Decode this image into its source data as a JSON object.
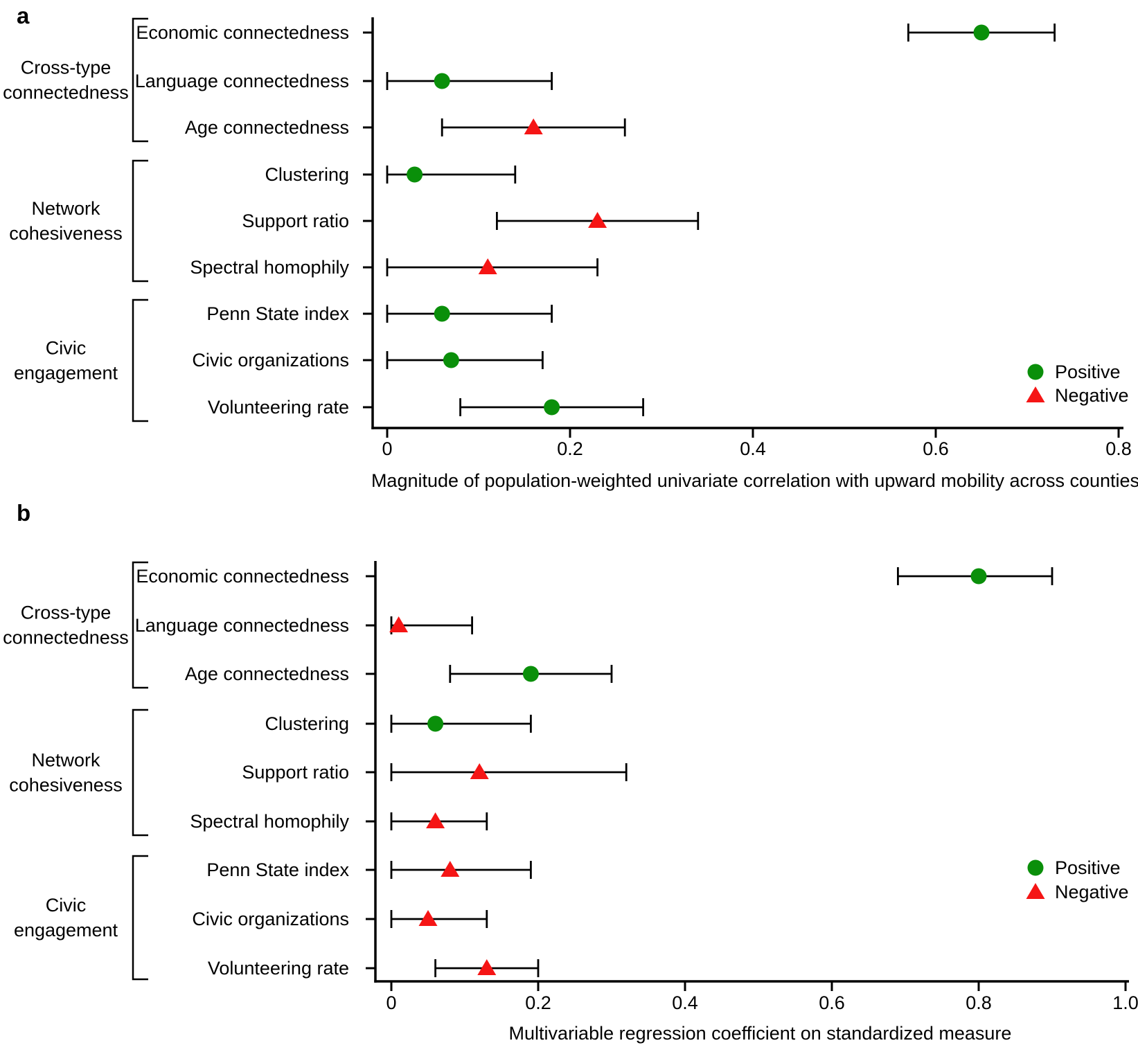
{
  "figure": {
    "background": "#ffffff",
    "text_color": "#000000",
    "positive_color": "#0a8f0a",
    "negative_color": "#f51515",
    "axis_color": "#000000"
  },
  "panels": [
    {
      "letter": "a"
    },
    {
      "letter": "b"
    }
  ],
  "chart_data": [
    {
      "panel": "a",
      "type": "scatter",
      "subtype": "dot-and-whisker-forest-plot",
      "xlabel": "Magnitude of population-weighted univariate correlation with upward mobility across counties",
      "xlim": [
        0,
        0.8
      ],
      "grid": false,
      "legend_position": "right-middle",
      "xticks": [
        {
          "value": 0,
          "label": "0"
        },
        {
          "value": 0.2,
          "label": "0.2"
        },
        {
          "value": 0.4,
          "label": "0.4"
        },
        {
          "value": 0.6,
          "label": "0.6"
        },
        {
          "value": 0.8,
          "label": "0.8"
        }
      ],
      "legend_entries": [
        {
          "label": "Positive",
          "marker": "circle",
          "sign": "positive"
        },
        {
          "label": "Negative",
          "marker": "triangle",
          "sign": "negative"
        }
      ],
      "groups": [
        {
          "label": "Cross-type connectedness",
          "label_lines": [
            "Cross-type",
            "connectedness"
          ],
          "first_row": 0,
          "last_row": 2
        },
        {
          "label": "Network cohesiveness",
          "label_lines": [
            "Network",
            "cohesiveness"
          ],
          "first_row": 3,
          "last_row": 5
        },
        {
          "label": "Civic engagement",
          "label_lines": [
            "Civic",
            "engagement"
          ],
          "first_row": 6,
          "last_row": 8
        }
      ],
      "rows": [
        {
          "label": "Economic connectedness",
          "sign": "positive",
          "value": 0.65,
          "ci": [
            0.57,
            0.73
          ]
        },
        {
          "label": "Language connectedness",
          "sign": "positive",
          "value": 0.06,
          "ci": [
            0.0,
            0.18
          ]
        },
        {
          "label": "Age connectedness",
          "sign": "negative",
          "value": 0.16,
          "ci": [
            0.06,
            0.26
          ]
        },
        {
          "label": "Clustering",
          "sign": "positive",
          "value": 0.03,
          "ci": [
            0.0,
            0.14
          ]
        },
        {
          "label": "Support ratio",
          "sign": "negative",
          "value": 0.23,
          "ci": [
            0.12,
            0.34
          ]
        },
        {
          "label": "Spectral homophily",
          "sign": "negative",
          "value": 0.11,
          "ci": [
            0.0,
            0.23
          ]
        },
        {
          "label": "Penn State index",
          "sign": "positive",
          "value": 0.06,
          "ci": [
            0.0,
            0.18
          ]
        },
        {
          "label": "Civic organizations",
          "sign": "positive",
          "value": 0.07,
          "ci": [
            0.0,
            0.17
          ]
        },
        {
          "label": "Volunteering rate",
          "sign": "positive",
          "value": 0.18,
          "ci": [
            0.08,
            0.28
          ]
        }
      ]
    },
    {
      "panel": "b",
      "type": "scatter",
      "subtype": "dot-and-whisker-forest-plot",
      "xlabel": "Multivariable regression coefficient on standardized measure",
      "xlim": [
        0,
        1.0
      ],
      "grid": false,
      "legend_position": "right-middle",
      "xticks": [
        {
          "value": 0,
          "label": "0"
        },
        {
          "value": 0.2,
          "label": "0.2"
        },
        {
          "value": 0.4,
          "label": "0.4"
        },
        {
          "value": 0.6,
          "label": "0.6"
        },
        {
          "value": 0.8,
          "label": "0.8"
        },
        {
          "value": 1.0,
          "label": "1.0"
        }
      ],
      "legend_entries": [
        {
          "label": "Positive",
          "marker": "circle",
          "sign": "positive"
        },
        {
          "label": "Negative",
          "marker": "triangle",
          "sign": "negative"
        }
      ],
      "groups": [
        {
          "label": "Cross-type connectedness",
          "label_lines": [
            "Cross-type",
            "connectedness"
          ],
          "first_row": 0,
          "last_row": 2
        },
        {
          "label": "Network cohesiveness",
          "label_lines": [
            "Network",
            "cohesiveness"
          ],
          "first_row": 3,
          "last_row": 5
        },
        {
          "label": "Civic engagement",
          "label_lines": [
            "Civic",
            "engagement"
          ],
          "first_row": 6,
          "last_row": 8
        }
      ],
      "rows": [
        {
          "label": "Economic connectedness",
          "sign": "positive",
          "value": 0.8,
          "ci": [
            0.69,
            0.9
          ]
        },
        {
          "label": "Language connectedness",
          "sign": "negative",
          "value": 0.01,
          "ci": [
            0.0,
            0.11
          ]
        },
        {
          "label": "Age connectedness",
          "sign": "positive",
          "value": 0.19,
          "ci": [
            0.08,
            0.3
          ]
        },
        {
          "label": "Clustering",
          "sign": "positive",
          "value": 0.06,
          "ci": [
            0.0,
            0.19
          ]
        },
        {
          "label": "Support ratio",
          "sign": "negative",
          "value": 0.12,
          "ci": [
            0.0,
            0.32
          ]
        },
        {
          "label": "Spectral homophily",
          "sign": "negative",
          "value": 0.06,
          "ci": [
            0.0,
            0.13
          ]
        },
        {
          "label": "Penn State index",
          "sign": "negative",
          "value": 0.08,
          "ci": [
            0.0,
            0.19
          ]
        },
        {
          "label": "Civic organizations",
          "sign": "negative",
          "value": 0.05,
          "ci": [
            0.0,
            0.13
          ]
        },
        {
          "label": "Volunteering rate",
          "sign": "negative",
          "value": 0.13,
          "ci": [
            0.06,
            0.2
          ]
        }
      ]
    }
  ]
}
